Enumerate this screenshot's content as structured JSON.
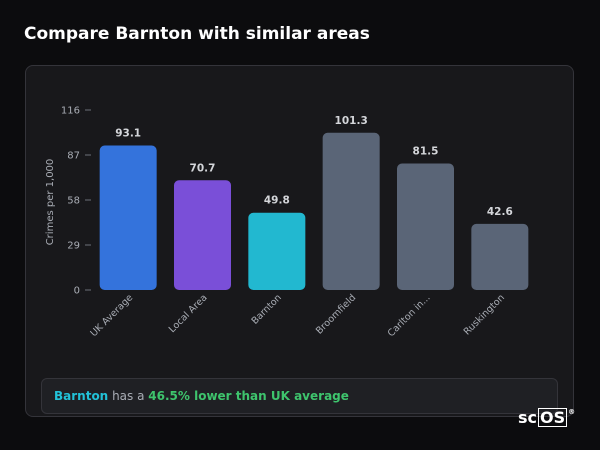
{
  "chart_data": {
    "type": "bar",
    "title": "Compare Barnton with similar areas",
    "y_label": "Crimes per 1,000",
    "categories": [
      "UK Average",
      "Local Area",
      "Barnton",
      "Broomfield",
      "Carlton in...",
      "Ruskington"
    ],
    "values": [
      93.1,
      70.7,
      49.8,
      101.3,
      81.5,
      42.6
    ],
    "colors": [
      "#3473dc",
      "#7a4fd8",
      "#22b8d0",
      "#5a6577",
      "#5a6577",
      "#5a6577"
    ],
    "ylim": [
      0,
      116
    ],
    "yticks": [
      0,
      29,
      58,
      87,
      116
    ],
    "grid": false
  },
  "summary": {
    "area": "Barnton",
    "connector": "has a",
    "comparison": "46.5% lower than UK average"
  },
  "logo": {
    "prefix": "sc",
    "boxed": "OS",
    "mark": "®"
  }
}
